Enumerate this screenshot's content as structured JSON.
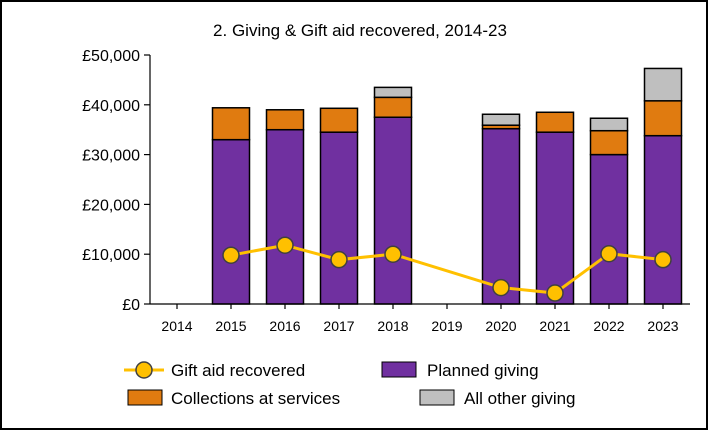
{
  "chart_data": {
    "type": "bar",
    "title": "2. Giving & Gift aid recovered, 2014-23",
    "categories": [
      "2014",
      "2015",
      "2016",
      "2017",
      "2018",
      "2019",
      "2020",
      "2021",
      "2022",
      "2023"
    ],
    "ylim": [
      0,
      50000
    ],
    "y_ticks": [
      0,
      10000,
      20000,
      30000,
      40000,
      50000
    ],
    "y_tick_labels": [
      "£0",
      "£10,000",
      "£20,000",
      "£30,000",
      "£40,000",
      "£50,000"
    ],
    "grid": false,
    "legend_position": "bottom",
    "stacked_series": [
      {
        "name": "Planned giving",
        "color": "#7030a0",
        "values": [
          null,
          33000,
          35000,
          34500,
          37500,
          null,
          35200,
          34500,
          30000,
          33800
        ]
      },
      {
        "name": "Collections at services",
        "color": "#e07b10",
        "values": [
          null,
          6400,
          4000,
          4800,
          4000,
          null,
          700,
          4000,
          4800,
          7000
        ]
      },
      {
        "name": "All other giving",
        "color": "#bfbfbf",
        "values": [
          null,
          0,
          0,
          0,
          2000,
          null,
          2200,
          0,
          2500,
          6500
        ]
      }
    ],
    "line_series": {
      "name": "Gift aid recovered",
      "color": "#ffc000",
      "marker_edge": "#404040",
      "values": [
        null,
        9800,
        11800,
        8900,
        10000,
        null,
        3300,
        2200,
        10100,
        8900
      ]
    },
    "legend": [
      {
        "name": "Gift aid recovered",
        "kind": "line"
      },
      {
        "name": "Planned giving",
        "kind": "box"
      },
      {
        "name": "Collections at services",
        "kind": "box"
      },
      {
        "name": "All other giving",
        "kind": "box"
      }
    ]
  }
}
